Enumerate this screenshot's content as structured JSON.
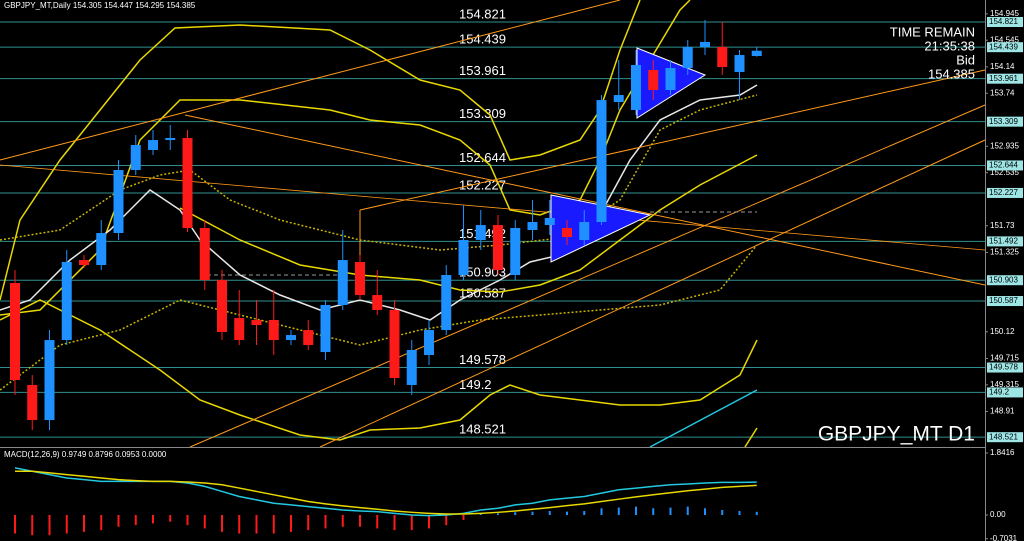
{
  "chart_data": [
    {
      "type": "candlestick",
      "title": "GBPJPY_MT,Daily 154.305 154.447 154.295 154.385",
      "watermark": "GBPJPY_MT D1",
      "annotations": [
        "TIME REMAIN",
        "21:35:38",
        "Bid"
      ],
      "bid": 154.385,
      "ylim": [
        148.372,
        155.155
      ],
      "yticks": [
        154.945,
        154.545,
        154.14,
        153.74,
        152.935,
        152.535,
        151.73,
        151.325,
        150.12,
        149.715,
        149.315,
        148.91
      ],
      "levels": [
        154.821,
        154.439,
        153.961,
        153.309,
        152.644,
        152.227,
        151.492,
        150.903,
        150.587,
        149.578,
        149.2,
        148.521
      ],
      "level_color": "#2f8f8f",
      "up_color": "#1e90ff",
      "down_color": "#ff1a1a",
      "open": [
        150.86,
        149.313,
        148.781,
        149.995,
        151.209,
        151.133,
        151.619,
        152.575,
        152.879,
        153.03,
        153.061,
        151.695,
        150.906,
        150.329,
        150.299,
        150.299,
        149.995,
        150.147,
        149.813,
        150.527,
        151.179,
        150.678,
        150.451,
        149.313,
        149.768,
        150.147,
        150.982,
        151.513,
        151.74,
        150.982,
        151.665,
        151.74,
        151.695,
        151.513,
        151.786,
        153.607,
        153.486,
        154.093,
        153.789,
        154.123,
        154.442,
        154.442,
        154.062,
        154.305
      ],
      "high": [
        151.058,
        149.464,
        150.147,
        151.361,
        151.285,
        151.816,
        152.727,
        153.106,
        153.182,
        153.258,
        153.182,
        151.816,
        151.058,
        150.754,
        150.603,
        150.754,
        150.147,
        150.299,
        150.603,
        151.665,
        151.285,
        151.058,
        150.603,
        149.995,
        150.299,
        151.133,
        152.044,
        151.968,
        151.892,
        151.816,
        152.12,
        152.12,
        151.816,
        151.968,
        153.713,
        154.244,
        154.396,
        154.244,
        154.244,
        154.548,
        154.851,
        154.821,
        154.396,
        154.447
      ],
      "low": [
        149.161,
        148.629,
        148.629,
        149.919,
        151.088,
        151.058,
        151.513,
        152.5,
        152.803,
        152.879,
        151.634,
        150.754,
        149.995,
        149.919,
        149.919,
        149.768,
        149.919,
        149.844,
        149.692,
        150.451,
        150.603,
        150.375,
        149.313,
        149.161,
        149.616,
        150.071,
        150.906,
        151.361,
        150.982,
        150.906,
        151.513,
        151.589,
        151.437,
        151.437,
        151.74,
        153.486,
        153.41,
        153.637,
        153.713,
        154.017,
        154.32,
        154.017,
        153.637,
        154.295
      ],
      "close": [
        149.388,
        148.781,
        149.995,
        151.179,
        151.133,
        151.619,
        152.575,
        152.955,
        153.03,
        153.061,
        151.695,
        150.906,
        150.117,
        149.995,
        150.223,
        149.995,
        150.071,
        149.919,
        150.527,
        151.209,
        150.678,
        150.451,
        149.419,
        149.844,
        150.147,
        150.982,
        151.513,
        151.74,
        151.058,
        151.695,
        151.786,
        151.847,
        151.558,
        151.786,
        153.637,
        153.713,
        154.169,
        153.789,
        154.123,
        154.442,
        154.518,
        154.138,
        154.32,
        154.385
      ]
    },
    {
      "type": "macd",
      "title": "MACD(12,26,9) 0.9749 0.8796 0.0953 0.0000",
      "ylim": [
        -0.772,
        1.9307
      ],
      "yticks": [
        1.8416,
        {
          "value": 0,
          "label": "0.00"
        },
        -0.7031
      ],
      "up_color": "#1e90ff",
      "down_color": "#ff1a1a",
      "histogram": [
        -0.55,
        -0.6,
        -0.6,
        -0.55,
        -0.5,
        -0.45,
        -0.35,
        -0.3,
        -0.25,
        -0.2,
        -0.3,
        -0.4,
        -0.5,
        -0.55,
        -0.55,
        -0.55,
        -0.5,
        -0.45,
        -0.4,
        -0.35,
        -0.35,
        -0.4,
        -0.45,
        -0.45,
        -0.4,
        -0.3,
        -0.15,
        0.03,
        0.05,
        0.08,
        0.1,
        0.12,
        0.1,
        0.12,
        0.2,
        0.22,
        0.25,
        0.2,
        0.22,
        0.25,
        0.2,
        0.15,
        0.12,
        0.0953
      ],
      "series": [
        {
          "color": "#22c8e0",
          "values": [
            1.4,
            1.3,
            1.2,
            1.1,
            1.05,
            1.0,
            1.0,
            1.0,
            1.0,
            1.0,
            0.95,
            0.85,
            0.7,
            0.55,
            0.45,
            0.35,
            0.3,
            0.25,
            0.2,
            0.15,
            0.12,
            0.1,
            0.05,
            0.0,
            -0.02,
            0.0,
            0.05,
            0.15,
            0.2,
            0.3,
            0.35,
            0.45,
            0.5,
            0.55,
            0.65,
            0.75,
            0.8,
            0.85,
            0.9,
            0.92,
            0.95,
            0.97,
            0.97,
            0.9749
          ]
        },
        {
          "color": "#e8d800",
          "values": [
            1.3,
            1.3,
            1.25,
            1.2,
            1.15,
            1.1,
            1.05,
            1.02,
            1.0,
            1.0,
            0.98,
            0.95,
            0.9,
            0.8,
            0.7,
            0.6,
            0.5,
            0.4,
            0.33,
            0.27,
            0.22,
            0.17,
            0.12,
            0.08,
            0.05,
            0.03,
            0.03,
            0.05,
            0.08,
            0.12,
            0.17,
            0.22,
            0.28,
            0.33,
            0.4,
            0.47,
            0.54,
            0.6,
            0.66,
            0.72,
            0.77,
            0.82,
            0.85,
            0.8796
          ]
        }
      ]
    }
  ]
}
